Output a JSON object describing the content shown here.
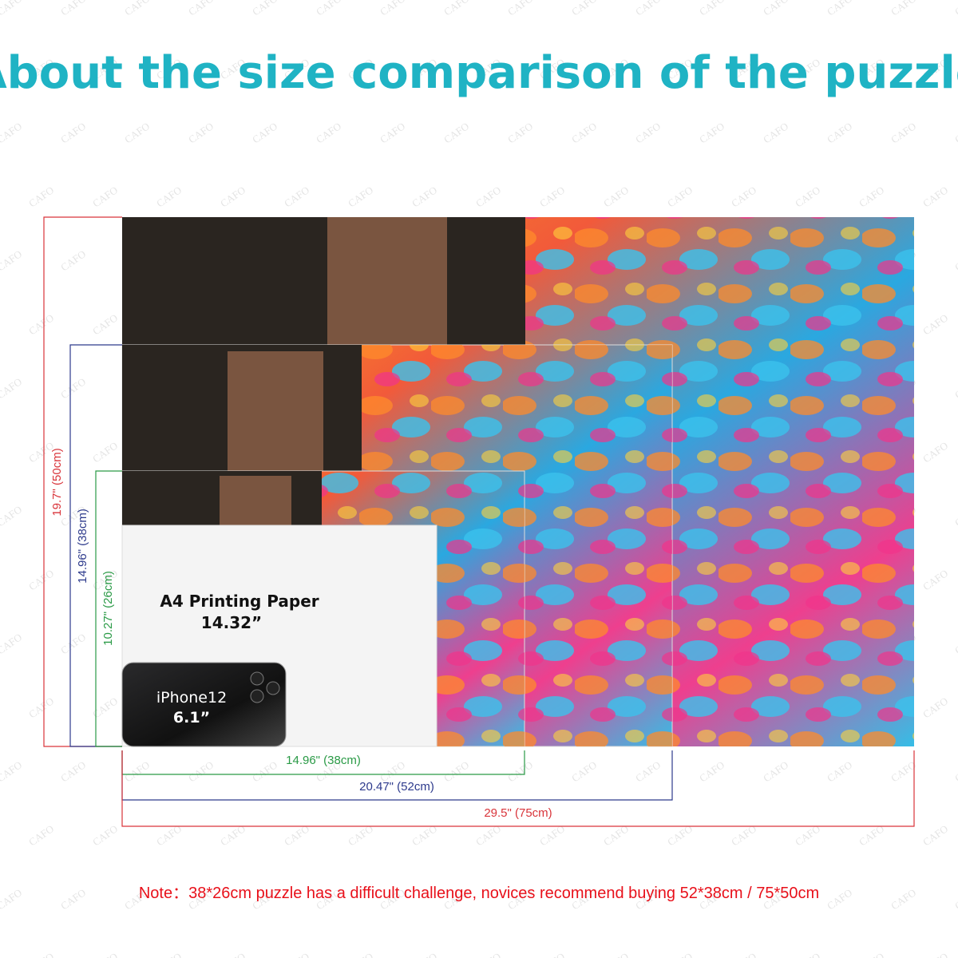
{
  "title": "About the size comparison of the puzzle",
  "watermark": "CAFO",
  "paper": {
    "label": "A4 Printing Paper",
    "size": "14.32”"
  },
  "phone": {
    "label": "iPhone12",
    "size": "6.1”"
  },
  "dimensions": {
    "large_height": "19.7\" (50cm)",
    "medium_height": "14.96\" (38cm)",
    "small_height": "10.27\" (26cm)",
    "small_width": "14.96\" (38cm)",
    "medium_width": "20.47\" (52cm)",
    "large_width": "29.5\" (75cm)"
  },
  "note": "Note：38*26cm puzzle has a difficult challenge, novices recommend buying 52*38cm / 75*50cm"
}
